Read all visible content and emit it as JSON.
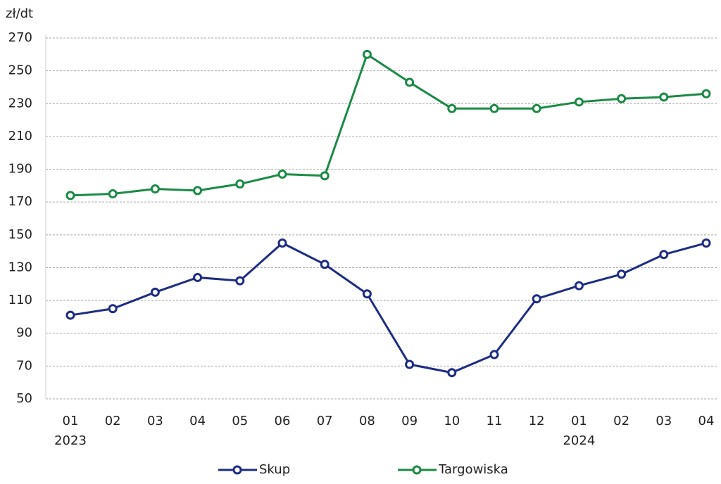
{
  "chart_data": {
    "type": "line",
    "y_label": "zł/dt",
    "categories": [
      "01",
      "02",
      "03",
      "04",
      "05",
      "06",
      "07",
      "08",
      "09",
      "10",
      "11",
      "12",
      "01",
      "02",
      "03",
      "04"
    ],
    "categories2": [
      "2023",
      null,
      null,
      null,
      null,
      null,
      null,
      null,
      null,
      null,
      null,
      null,
      "2024",
      null,
      null,
      null
    ],
    "series": [
      {
        "name": "Skup",
        "color": "#1c2d83",
        "values": [
          101,
          105,
          115,
          124,
          122,
          145,
          132,
          114,
          71,
          66,
          77,
          111,
          119,
          126,
          138,
          145
        ]
      },
      {
        "name": "Targowiska",
        "color": "#1b8a45",
        "values": [
          174,
          175,
          178,
          177,
          181,
          187,
          186,
          260,
          243,
          227,
          227,
          227,
          231,
          233,
          234,
          236
        ]
      }
    ],
    "ylim": [
      50,
      270
    ],
    "yticks": [
      50,
      70,
      90,
      110,
      130,
      150,
      170,
      190,
      210,
      230,
      250,
      270
    ],
    "grid": true,
    "legend": "bottom"
  }
}
